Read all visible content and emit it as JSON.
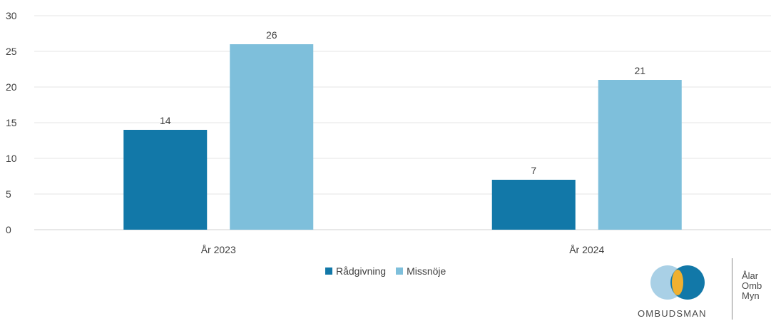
{
  "chart_data": {
    "type": "bar",
    "categories": [
      "År 2023",
      "År 2024"
    ],
    "series": [
      {
        "name": "Rådgivning",
        "values": [
          14,
          7
        ],
        "color": "#1278a8"
      },
      {
        "name": "Missnöje",
        "values": [
          26,
          21
        ],
        "color": "#7ebfdb"
      }
    ],
    "ylim": [
      0,
      30
    ],
    "yticks": [
      0,
      5,
      10,
      15,
      20,
      25,
      30
    ],
    "grid": true,
    "legend": "bottom-center",
    "title": "",
    "xlabel": "",
    "ylabel": ""
  },
  "logo": {
    "word": "OMBUDSMAN",
    "line1": "Ålar",
    "line2": "Omb",
    "line3": "Myn",
    "circle_left_color": "#a9d0e6",
    "circle_right_color": "#1278a8",
    "overlap_color": "#f0b030"
  }
}
